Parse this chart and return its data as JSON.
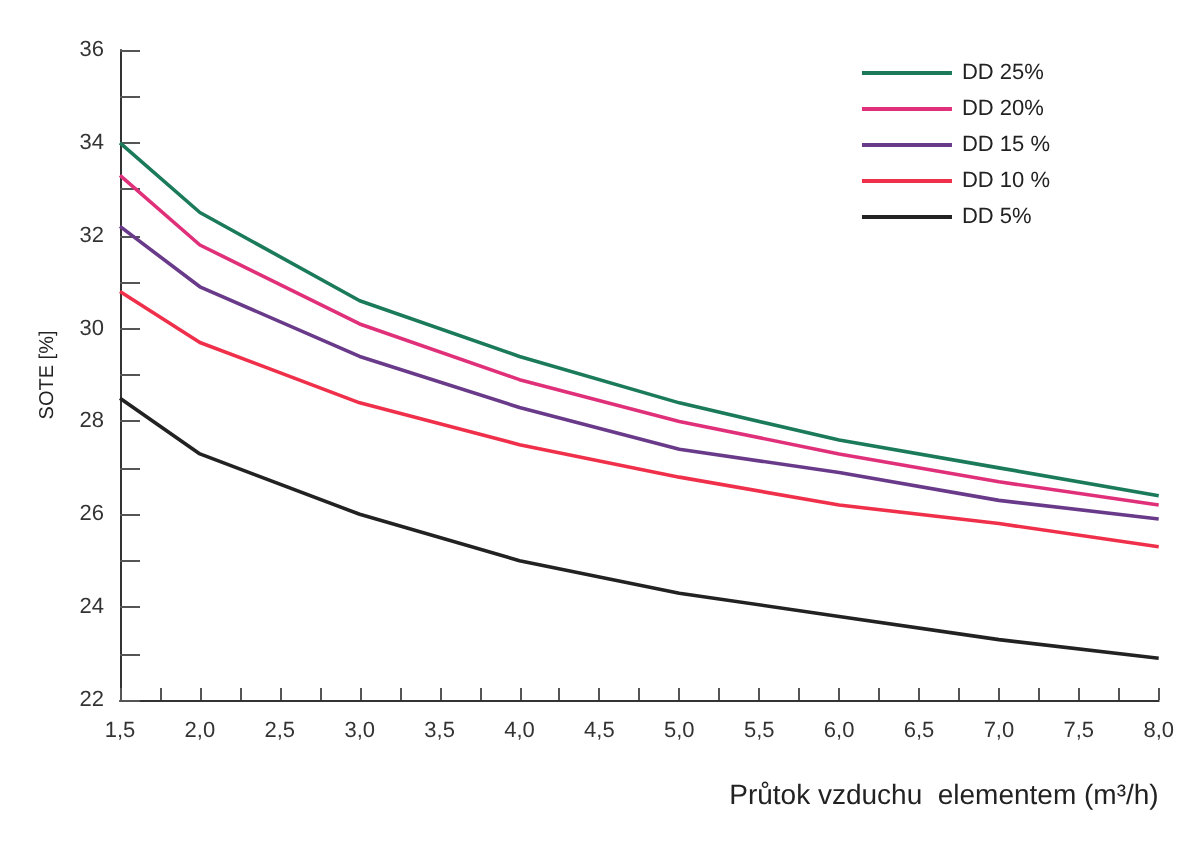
{
  "chart_data": {
    "type": "line",
    "xlabel": "Průtok vzduchu  elementem (m³/h)",
    "ylabel": "SOTE [%]",
    "x": [
      1.5,
      2,
      3,
      4,
      5,
      6,
      7,
      8
    ],
    "series": [
      {
        "name": "DD 25%",
        "color": "#1a7a5a",
        "values": [
          34.0,
          32.5,
          30.6,
          29.4,
          28.4,
          27.6,
          27.0,
          26.4
        ]
      },
      {
        "name": "DD 20%",
        "color": "#e0307a",
        "values": [
          33.3,
          31.8,
          30.1,
          28.9,
          28.0,
          27.3,
          26.7,
          26.2
        ]
      },
      {
        "name": "DD 15 %",
        "color": "#6a3a8a",
        "values": [
          32.2,
          30.9,
          29.4,
          28.3,
          27.4,
          26.9,
          26.3,
          25.9
        ]
      },
      {
        "name": "DD 10 %",
        "color": "#f0304a",
        "values": [
          30.8,
          29.7,
          28.4,
          27.5,
          26.8,
          26.2,
          25.8,
          25.3
        ]
      },
      {
        "name": "DD 5%",
        "color": "#222222",
        "values": [
          28.5,
          27.3,
          26.0,
          25.0,
          24.3,
          23.8,
          23.3,
          22.9
        ]
      }
    ],
    "xlim": [
      1.5,
      8
    ],
    "xticks": [
      {
        "value": 1.5,
        "label": "1,5"
      },
      {
        "value": 1.75,
        "label": null
      },
      {
        "value": 2,
        "label": "2,0"
      },
      {
        "value": 2.25,
        "label": null
      },
      {
        "value": 2.5,
        "label": "2,5"
      },
      {
        "value": 2.75,
        "label": null
      },
      {
        "value": 3,
        "label": "3,0"
      },
      {
        "value": 3.25,
        "label": null
      },
      {
        "value": 3.5,
        "label": "3,5"
      },
      {
        "value": 3.75,
        "label": null
      },
      {
        "value": 4,
        "label": "4,0"
      },
      {
        "value": 4.25,
        "label": null
      },
      {
        "value": 4.5,
        "label": "4,5"
      },
      {
        "value": 4.75,
        "label": null
      },
      {
        "value": 5,
        "label": "5,0"
      },
      {
        "value": 5.25,
        "label": null
      },
      {
        "value": 5.5,
        "label": "5,5"
      },
      {
        "value": 5.75,
        "label": null
      },
      {
        "value": 6,
        "label": "6,0"
      },
      {
        "value": 6.25,
        "label": null
      },
      {
        "value": 6.5,
        "label": "6,5"
      },
      {
        "value": 6.75,
        "label": null
      },
      {
        "value": 7,
        "label": "7,0"
      },
      {
        "value": 7.25,
        "label": null
      },
      {
        "value": 7.5,
        "label": "7,5"
      },
      {
        "value": 7.75,
        "label": null
      },
      {
        "value": 8,
        "label": "8,0"
      }
    ],
    "ylim": [
      22,
      36
    ],
    "yticks": [
      22,
      {
        "value": 23,
        "label": null
      },
      24,
      {
        "value": 25,
        "label": null
      },
      26,
      {
        "value": 27,
        "label": null
      },
      28,
      {
        "value": 29,
        "label": null
      },
      30,
      {
        "value": 31,
        "label": null
      },
      32,
      {
        "value": 33,
        "label": null
      },
      34,
      {
        "value": 35,
        "label": null
      },
      36
    ],
    "grid": false,
    "legend": "top right",
    "marker": "none",
    "line_style": "solid"
  }
}
